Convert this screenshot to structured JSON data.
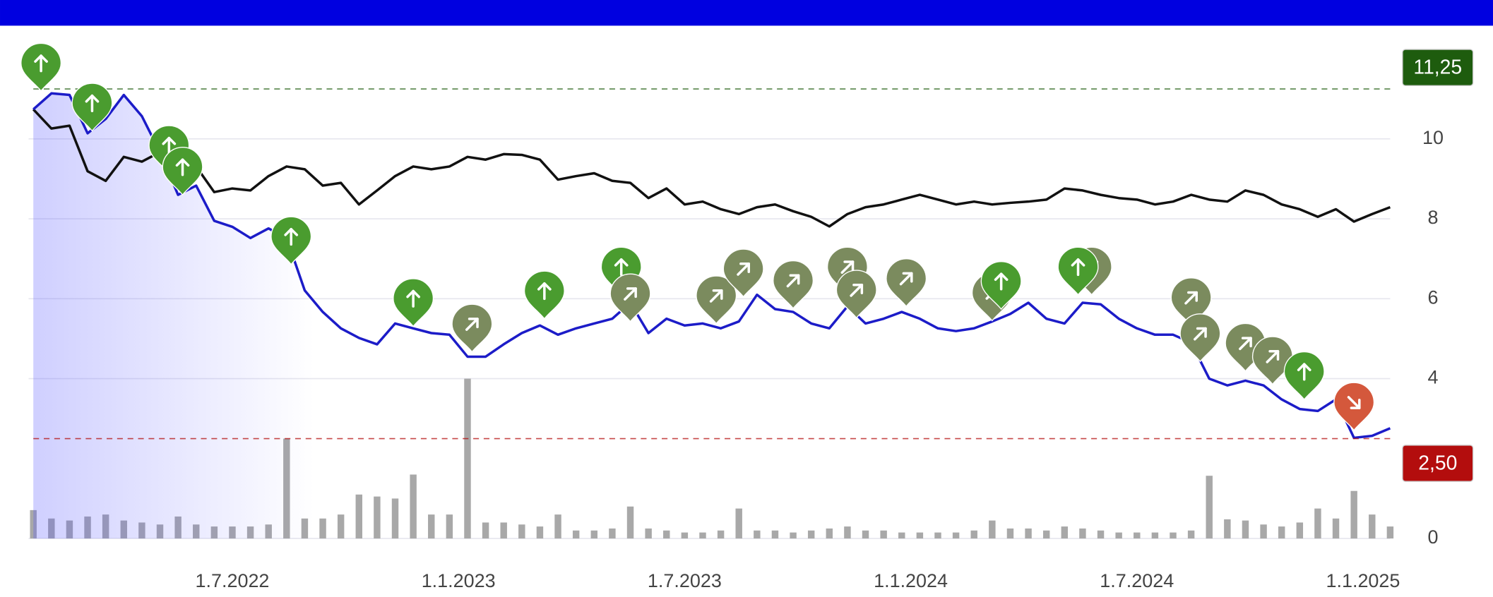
{
  "chart_data": {
    "type": "line",
    "x": [
      2022.06,
      2022.1,
      2022.14,
      2022.18,
      2022.22,
      2022.26,
      2022.3,
      2022.34,
      2022.38,
      2022.42,
      2022.46,
      2022.5,
      2022.54,
      2022.58,
      2022.62,
      2022.66,
      2022.7,
      2022.74,
      2022.78,
      2022.82,
      2022.86,
      2022.9,
      2022.94,
      2022.98,
      2023.02,
      2023.06,
      2023.1,
      2023.14,
      2023.18,
      2023.22,
      2023.26,
      2023.3,
      2023.34,
      2023.38,
      2023.42,
      2023.46,
      2023.5,
      2023.54,
      2023.58,
      2023.62,
      2023.66,
      2023.7,
      2023.74,
      2023.78,
      2023.82,
      2023.86,
      2023.9,
      2023.94,
      2023.98,
      2024.02,
      2024.06,
      2024.1,
      2024.14,
      2024.18,
      2024.22,
      2024.26,
      2024.3,
      2024.34,
      2024.38,
      2024.42,
      2024.46,
      2024.5,
      2024.54,
      2024.58,
      2024.62,
      2024.66,
      2024.7,
      2024.74,
      2024.78,
      2024.82,
      2024.86,
      2024.9,
      2024.94,
      2024.98,
      2025.02,
      2025.06
    ],
    "series": [
      {
        "color": "#1c1cc8",
        "values": [
          10.74,
          11.14,
          11.1,
          10.14,
          10.5,
          11.1,
          10.57,
          9.67,
          8.6,
          8.83,
          7.95,
          7.8,
          7.52,
          7.76,
          7.52,
          6.21,
          5.67,
          5.26,
          5.02,
          4.86,
          5.38,
          5.26,
          5.14,
          5.1,
          4.55,
          4.55,
          4.86,
          5.14,
          5.33,
          5.1,
          5.26,
          5.38,
          5.5,
          5.9,
          5.14,
          5.5,
          5.33,
          5.38,
          5.26,
          5.43,
          6.1,
          5.74,
          5.67,
          5.38,
          5.26,
          5.81,
          5.38,
          5.5,
          5.67,
          5.5,
          5.26,
          5.19,
          5.26,
          5.43,
          5.62,
          5.9,
          5.5,
          5.38,
          5.9,
          5.86,
          5.5,
          5.26,
          5.1,
          5.1,
          4.9,
          4.0,
          3.83,
          3.95,
          3.83,
          3.48,
          3.24,
          3.19,
          3.48,
          2.52,
          2.57,
          2.76
        ]
      },
      {
        "color": "#111111",
        "values": [
          10.74,
          10.26,
          10.33,
          9.19,
          8.95,
          9.55,
          9.43,
          9.67,
          9.31,
          9.31,
          8.67,
          8.76,
          8.71,
          9.07,
          9.31,
          9.24,
          8.83,
          8.9,
          8.36,
          8.71,
          9.07,
          9.31,
          9.24,
          9.31,
          9.55,
          9.48,
          9.62,
          9.6,
          9.48,
          8.98,
          9.07,
          9.14,
          8.95,
          8.9,
          8.52,
          8.76,
          8.36,
          8.43,
          8.24,
          8.12,
          8.29,
          8.36,
          8.19,
          8.05,
          7.81,
          8.12,
          8.29,
          8.36,
          8.48,
          8.6,
          8.48,
          8.36,
          8.43,
          8.36,
          8.4,
          8.43,
          8.48,
          8.76,
          8.71,
          8.6,
          8.52,
          8.48,
          8.36,
          8.43,
          8.6,
          8.48,
          8.43,
          8.71,
          8.6,
          8.36,
          8.24,
          8.05,
          8.24,
          7.93,
          8.12,
          8.29
        ]
      }
    ],
    "volume": {
      "color": "#a8a8a8",
      "values": [
        0.71,
        0.5,
        0.45,
        0.55,
        0.6,
        0.45,
        0.4,
        0.35,
        0.55,
        0.35,
        0.3,
        0.3,
        0.3,
        0.35,
        2.5,
        0.5,
        0.5,
        0.6,
        1.1,
        1.05,
        1.0,
        1.6,
        0.6,
        0.6,
        4.0,
        0.4,
        0.4,
        0.35,
        0.3,
        0.6,
        0.2,
        0.2,
        0.25,
        0.8,
        0.25,
        0.2,
        0.15,
        0.15,
        0.2,
        0.75,
        0.2,
        0.2,
        0.15,
        0.2,
        0.25,
        0.3,
        0.2,
        0.2,
        0.15,
        0.15,
        0.15,
        0.15,
        0.2,
        0.45,
        0.25,
        0.25,
        0.2,
        0.3,
        0.25,
        0.2,
        0.15,
        0.15,
        0.15,
        0.15,
        0.2,
        1.57,
        0.48,
        0.45,
        0.35,
        0.3,
        0.4,
        0.75,
        0.5,
        1.19,
        0.6,
        0.3
      ]
    },
    "events": {
      "x": [
        2022.077,
        2022.19,
        2022.36,
        2022.39,
        2022.63,
        2022.9,
        2023.03,
        2023.19,
        2023.36,
        2023.38,
        2023.57,
        2023.63,
        2023.74,
        2023.86,
        2023.88,
        2023.99,
        2024.18,
        2024.2,
        2024.4,
        2024.37,
        2024.62,
        2024.64,
        2024.74,
        2024.8,
        2024.87,
        2024.98
      ],
      "values": [
        11.2,
        10.2,
        9.14,
        8.6,
        6.86,
        5.31,
        4.67,
        5.5,
        6.1,
        5.43,
        5.38,
        6.05,
        5.76,
        6.1,
        5.52,
        5.81,
        5.45,
        5.74,
        6.1,
        6.1,
        5.33,
        4.43,
        4.19,
        3.86,
        3.48,
        2.71
      ],
      "colors": [
        "#4a9c2f",
        "#4a9c2f",
        "#4a9c2f",
        "#4a9c2f",
        "#4a9c2f",
        "#4a9c2f",
        "#7b8b5e",
        "#4a9c2f",
        "#4a9c2f",
        "#7b8b5e",
        "#7b8b5e",
        "#7b8b5e",
        "#7b8b5e",
        "#7b8b5e",
        "#7b8b5e",
        "#7b8b5e",
        "#7b8b5e",
        "#4a9c2f",
        "#7b8b5e",
        "#4a9c2f",
        "#7b8b5e",
        "#7b8b5e",
        "#7b8b5e",
        "#7b8b5e",
        "#4a9c2f",
        "#d4583c"
      ],
      "arrow_angles": [
        0,
        0,
        0,
        0,
        0,
        0,
        45,
        0,
        0,
        45,
        45,
        45,
        45,
        45,
        45,
        45,
        45,
        0,
        45,
        0,
        45,
        45,
        45,
        45,
        0,
        135
      ]
    },
    "reference_lines": [
      {
        "value": 11.25,
        "label": "11,25",
        "color": "#1e5c0e"
      },
      {
        "value": 2.5,
        "label": "2,50",
        "color": "#b30d0d"
      }
    ],
    "xlim": [
      2022.06,
      2025.06
    ],
    "ylim": [
      0,
      12
    ],
    "xticks": [
      {
        "value": 2022.5,
        "label": "1.7.2022"
      },
      {
        "value": 2023.0,
        "label": "1.1.2023"
      },
      {
        "value": 2023.5,
        "label": "1.7.2023"
      },
      {
        "value": 2024.0,
        "label": "1.1.2024"
      },
      {
        "value": 2024.5,
        "label": "1.7.2024"
      },
      {
        "value": 2025.0,
        "label": "1.1.2025"
      }
    ],
    "yticks": [
      0,
      4,
      6,
      8,
      10
    ],
    "grid": true
  }
}
